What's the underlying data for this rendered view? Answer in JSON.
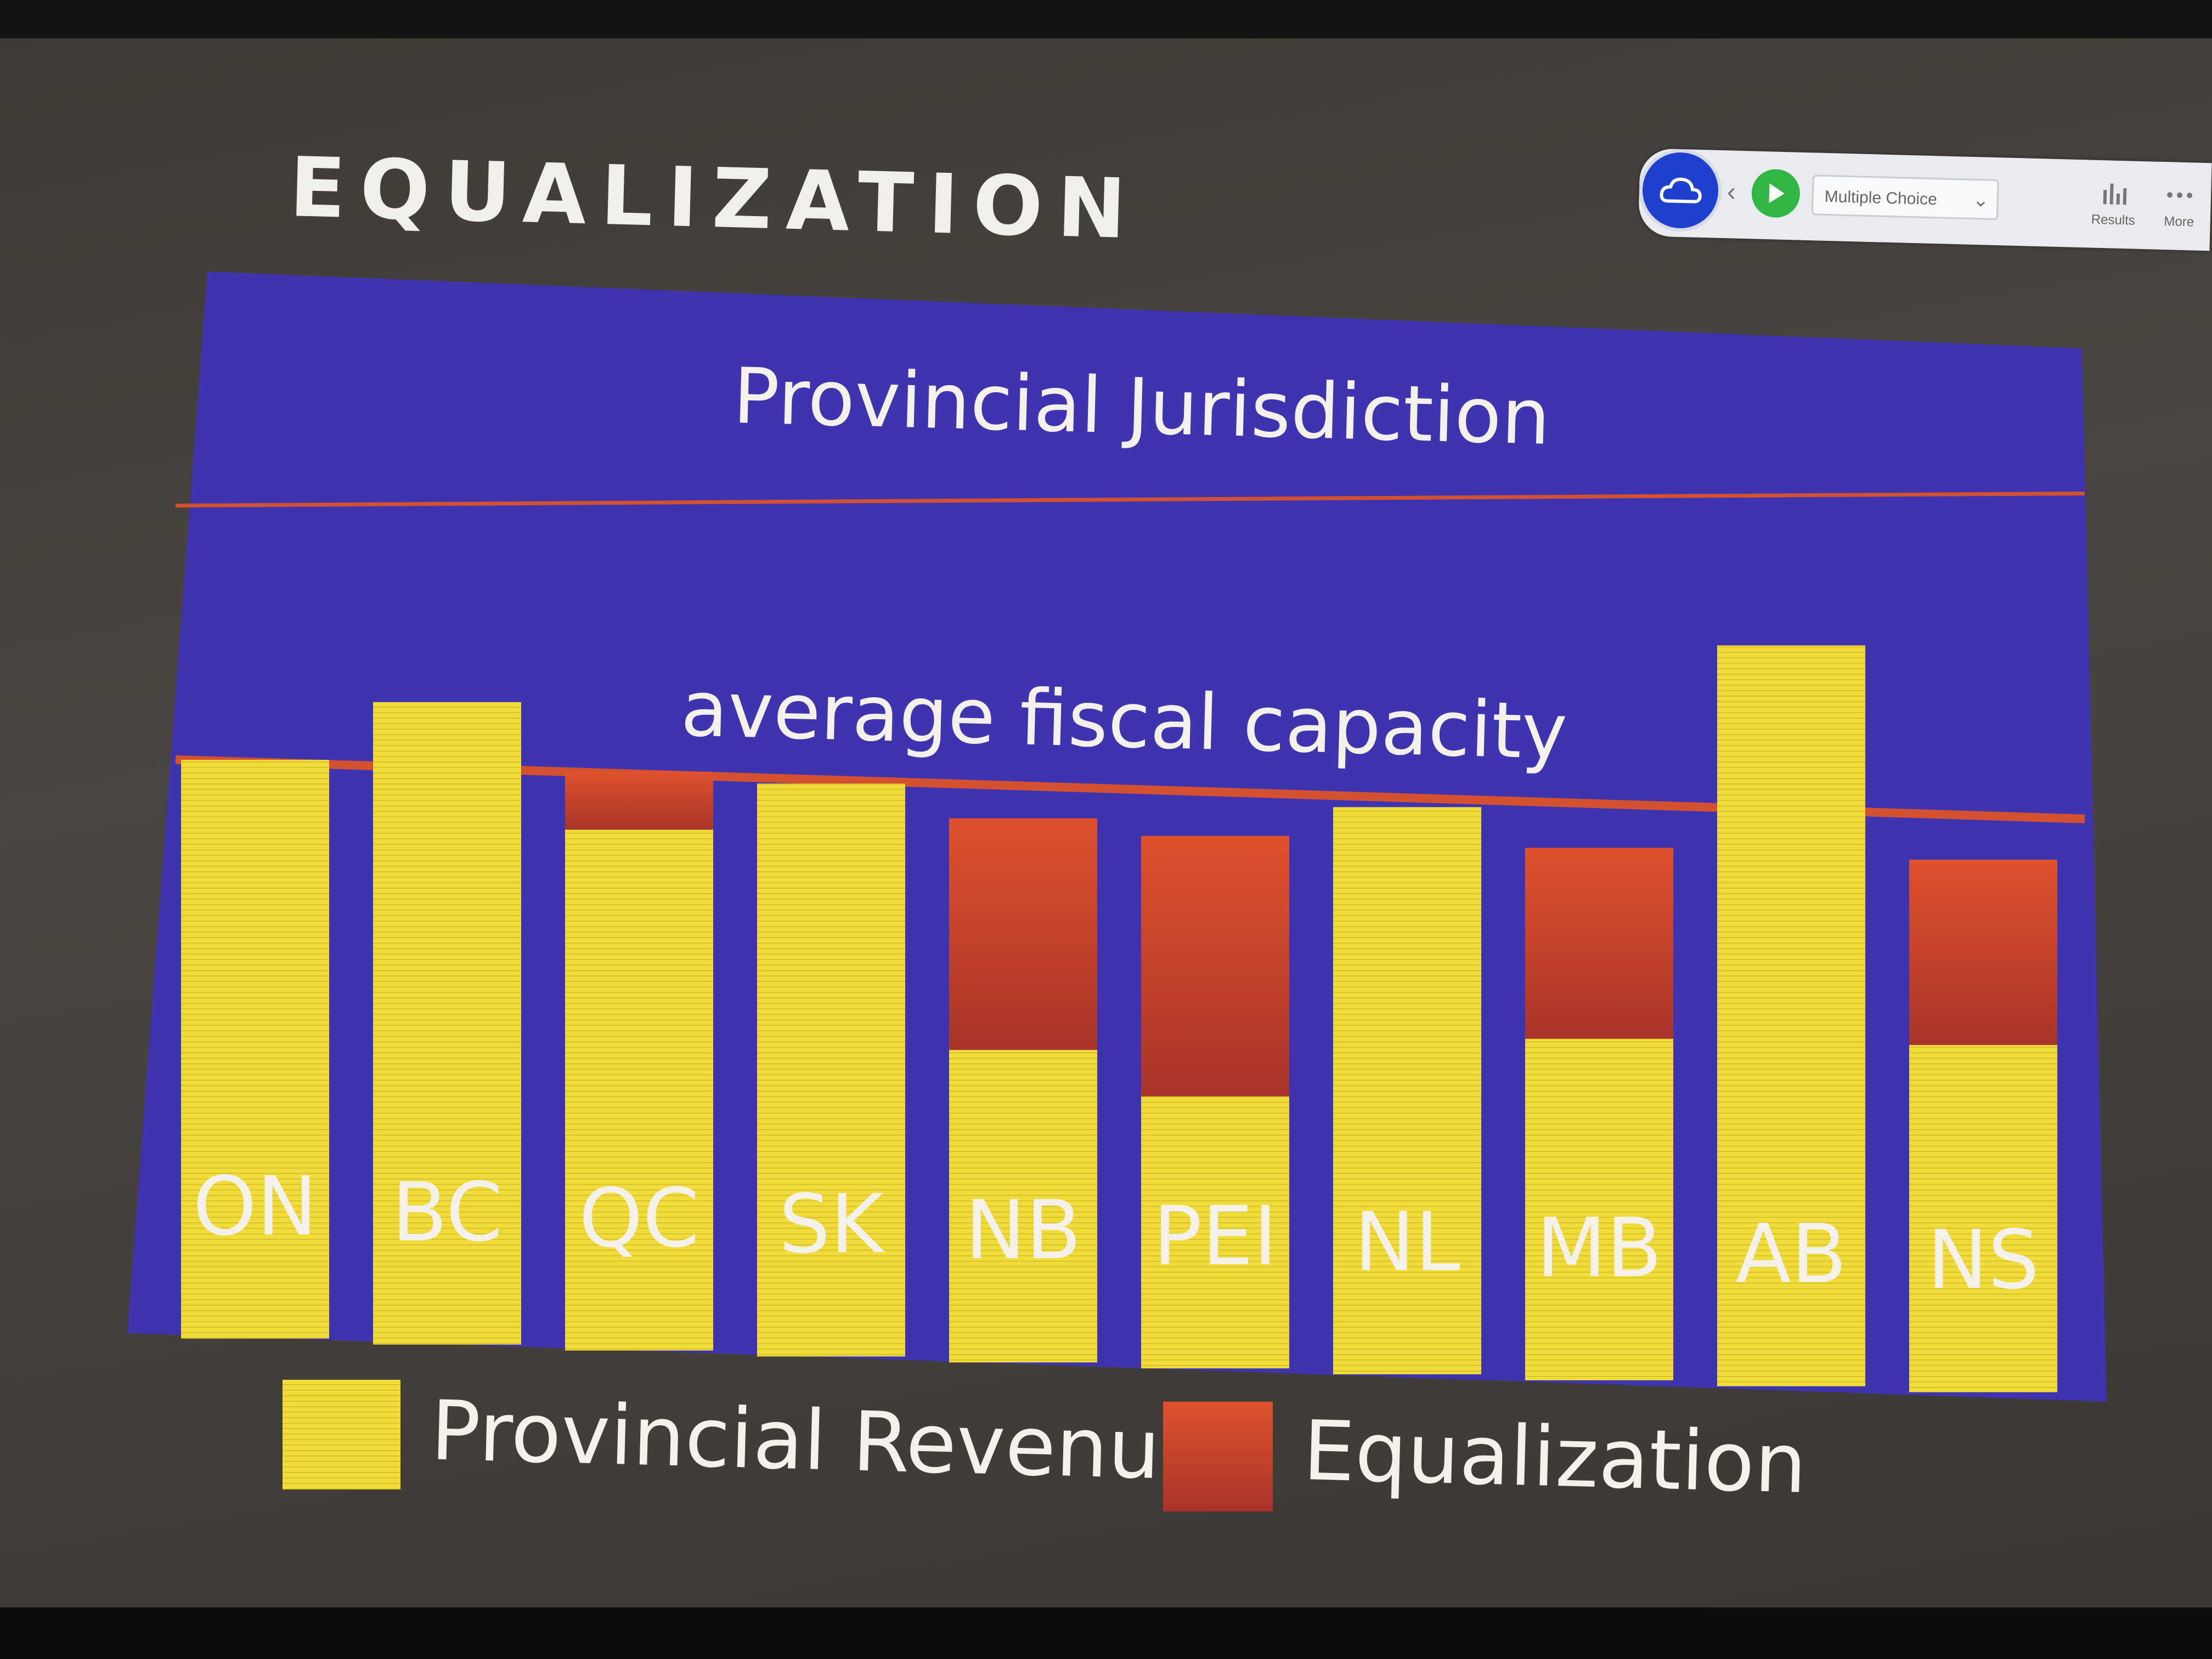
{
  "slide": {
    "title": "EQUALIZATION"
  },
  "toolbar": {
    "poll_type": "Multiple Choice",
    "results_label": "Results",
    "more_label": "More",
    "icons": [
      "cloud-icon",
      "back-icon",
      "play-icon",
      "chevron-down-icon",
      "bar-chart-icon",
      "more-dots-icon"
    ]
  },
  "chart_data": {
    "type": "bar",
    "title": "Provincial Jurisdiction",
    "reference_lines": [
      {
        "label": "average fiscal capacity",
        "value": 100
      },
      {
        "label": "Provincial Jurisdiction",
        "value": 142
      }
    ],
    "categories": [
      "ON",
      "BC",
      "QC",
      "SK",
      "NB",
      "PEI",
      "NL",
      "MB",
      "AB",
      "NS"
    ],
    "series": [
      {
        "name": "Provincial Revenue",
        "color": "#f2dc3a",
        "values": [
          100,
          111,
          90,
          99,
          54,
          47,
          98,
          59,
          128,
          60
        ]
      },
      {
        "name": "Equalization",
        "color": "#d94a2b",
        "values": [
          0,
          0,
          10,
          0,
          40,
          45,
          0,
          33,
          0,
          32
        ]
      }
    ],
    "ylim": [
      0,
      160
    ],
    "stacked": true
  },
  "colors": {
    "panel": "#3f34b0",
    "revenue": "#f2dc3a",
    "equalization_top": "#e0512c",
    "equalization_bottom": "#a8342a",
    "reference_line": "#d5502f",
    "text": "#f3f1ea"
  }
}
